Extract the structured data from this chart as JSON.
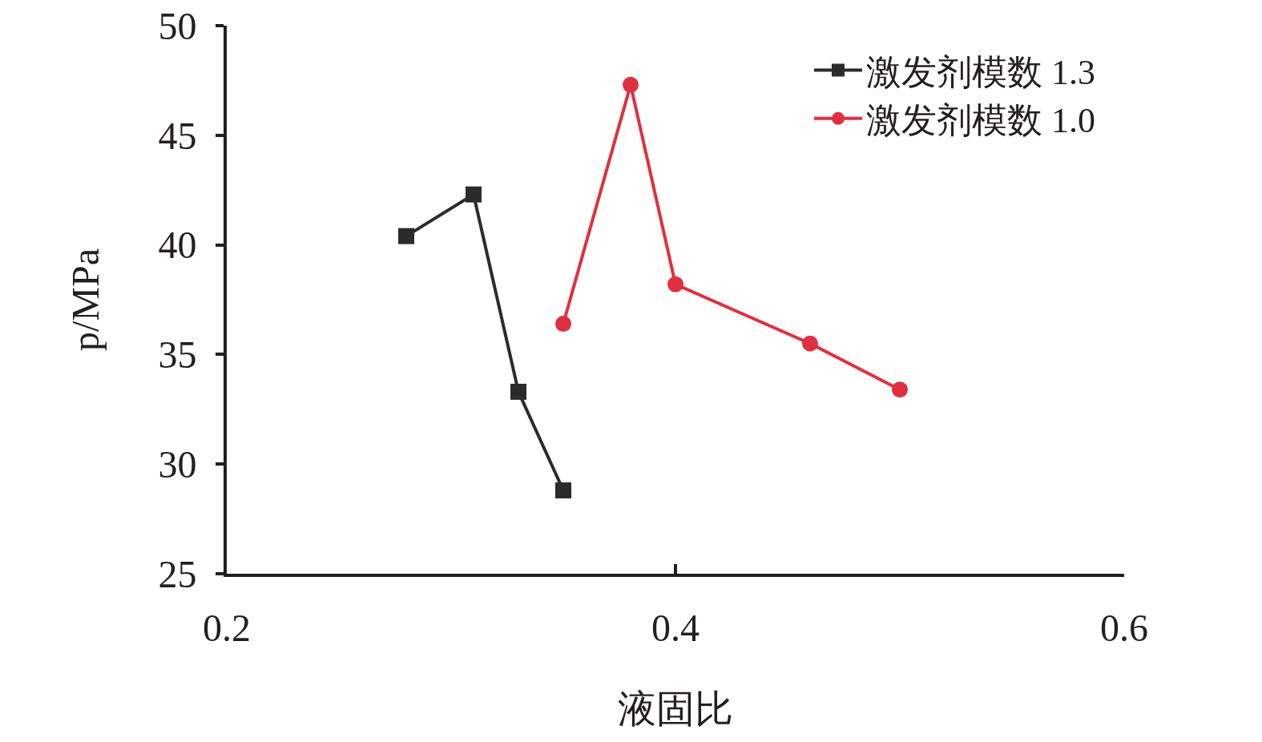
{
  "chart_data": {
    "type": "line",
    "xlabel": "液固比",
    "ylabel": "p/MPa",
    "series": [
      {
        "name": "激发剂模数 1.3",
        "color": "#2b2b2b",
        "marker": "square",
        "x": [
          0.28,
          0.31,
          0.33,
          0.35
        ],
        "values": [
          40.4,
          42.3,
          33.3,
          28.8
        ]
      },
      {
        "name": "激发剂模数 1.0",
        "color": "#e0303f",
        "marker": "circle",
        "x": [
          0.35,
          0.38,
          0.4,
          0.46,
          0.5
        ],
        "values": [
          36.4,
          47.3,
          38.2,
          35.5,
          33.4
        ]
      }
    ],
    "xlim": [
      0.2,
      0.6
    ],
    "xticks": [
      0.2,
      0.4,
      0.6
    ],
    "ylim": [
      25,
      50
    ],
    "yticks": [
      25,
      30,
      35,
      40,
      45,
      50
    ],
    "legend": "top right",
    "line_style": "solid"
  }
}
